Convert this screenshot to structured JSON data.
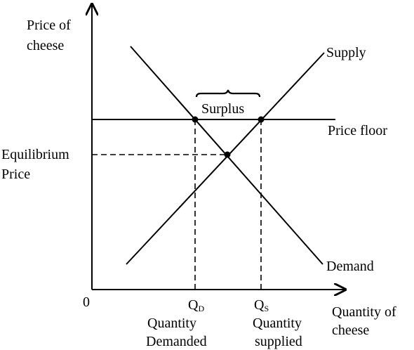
{
  "y_axis_label_line1": "Price of",
  "y_axis_label_line2": "cheese",
  "x_axis_label_line1": "Quantity of",
  "x_axis_label_line2": "cheese",
  "origin_label": "0",
  "equilibrium_label_line1": "Equilibrium",
  "equilibrium_label_line2": "Price",
  "supply_label": "Supply",
  "demand_label": "Demand",
  "price_floor_label": "Price floor",
  "surplus_label": "Surplus",
  "qd_letter": "Q",
  "qd_sub": "D",
  "qs_letter": "Q",
  "qs_sub": "S",
  "qd_caption_line1": "Quantity",
  "qd_caption_line2": "Demanded",
  "qs_caption_line1": "Quantity",
  "qs_caption_line2": "supplied"
}
